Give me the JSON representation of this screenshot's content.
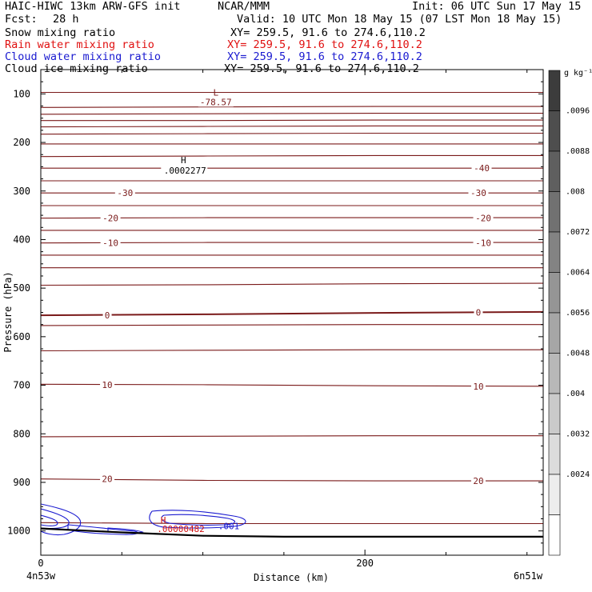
{
  "header": {
    "title_left": "HAIC-HIWC 13km ARW-GFS init",
    "title_center": "NCAR/MMM",
    "init": "Init: 06 UTC Sun 17 May 15",
    "fcst_label": "Fcst:",
    "fcst_value": "28 h",
    "valid": "Valid: 10 UTC Mon 18 May 15 (07 LST Mon 18 May 15)"
  },
  "fields": [
    {
      "name": "Snow mixing ratio",
      "xy": "XY= 259.5, 91.6 to 274.6,110.2",
      "color": "#000000"
    },
    {
      "name": "Rain water mixing ratio",
      "xy": "XY= 259.5, 91.6 to 274.6,110.2",
      "color": "#e01010"
    },
    {
      "name": "Cloud water mixing ratio",
      "xy": "XY= 259.5, 91.6 to 274.6,110.2",
      "color": "#1a1ad0"
    },
    {
      "name": "Cloud ice mixing ratio",
      "xy": "XY= 259.5, 91.6 to 274.6,110.2",
      "color": "#000000"
    }
  ],
  "chart_data": {
    "type": "contour",
    "x_axis": {
      "label": "Distance (km)",
      "range": [
        0,
        310
      ],
      "ticks": [
        0,
        200
      ],
      "minor_ticks": [
        50,
        100,
        150,
        250,
        300
      ],
      "left_location": "4n53w",
      "right_location": "6n51w"
    },
    "y_axis": {
      "label": "Pressure (hPa)",
      "range": [
        50,
        1050
      ],
      "ticks": [
        100,
        200,
        300,
        400,
        500,
        600,
        700,
        800,
        900,
        1000
      ]
    },
    "colorbar": {
      "units": "g kg⁻¹",
      "labels": [
        ".0096",
        ".0088",
        ".008",
        ".0072",
        ".0064",
        ".0056",
        ".0048",
        ".004",
        ".0032",
        ".0024"
      ]
    },
    "temperature_isotherms": {
      "color": "#7a1a1a",
      "lines": [
        {
          "p": [
            97,
            97,
            97,
            97
          ],
          "label": null
        },
        {
          "p": [
            128,
            127,
            126,
            126
          ],
          "label": null
        },
        {
          "p": [
            142,
            141,
            140,
            140
          ],
          "label": null
        },
        {
          "p": [
            155,
            155,
            154,
            154
          ],
          "label": null
        },
        {
          "p": [
            168,
            167,
            166,
            166
          ],
          "label": null
        },
        {
          "p": [
            183,
            182,
            181,
            181
          ],
          "label": null
        },
        {
          "p": [
            203,
            203,
            203,
            203
          ],
          "label": null
        },
        {
          "p": [
            229,
            228,
            227,
            227
          ],
          "label": null
        },
        {
          "p": [
            253,
            253,
            253,
            253
          ],
          "label": "-40"
        },
        {
          "p": [
            279,
            279,
            279,
            279
          ],
          "label": null
        },
        {
          "p": [
            304,
            304,
            304,
            304
          ],
          "label": "-30"
        },
        {
          "p": [
            330,
            330,
            330,
            330
          ],
          "label": null
        },
        {
          "p": [
            356,
            355,
            355,
            355
          ],
          "label": "-20"
        },
        {
          "p": [
            381,
            381,
            381,
            381
          ],
          "label": null
        },
        {
          "p": [
            407,
            406,
            406,
            406
          ],
          "label": "-10"
        },
        {
          "p": [
            432,
            432,
            432,
            432
          ],
          "label": null
        },
        {
          "p": [
            458,
            458,
            458,
            458
          ],
          "label": null
        },
        {
          "p": [
            494,
            493,
            491,
            490
          ],
          "label": null
        },
        {
          "p": [
            556,
            554,
            551,
            549
          ],
          "label": "0",
          "bold": true
        },
        {
          "p": [
            577,
            576,
            575,
            575
          ],
          "label": null
        },
        {
          "p": [
            629,
            628,
            627,
            627
          ],
          "label": null
        },
        {
          "p": [
            698,
            699,
            701,
            702
          ],
          "label": "10"
        },
        {
          "p": [
            806,
            805,
            804,
            804
          ],
          "label": null
        },
        {
          "p": [
            893,
            896,
            897,
            897
          ],
          "label": "20"
        },
        {
          "p": [
            983,
            985,
            985,
            985
          ],
          "label": null
        }
      ],
      "label_positions": [
        {
          "text": "-40",
          "x": 272,
          "p": 253
        },
        {
          "text": "-30",
          "x": 52,
          "p": 304
        },
        {
          "text": "-30",
          "x": 270,
          "p": 304
        },
        {
          "text": "-20",
          "x": 43,
          "p": 356
        },
        {
          "text": "-20",
          "x": 273,
          "p": 356
        },
        {
          "text": "-10",
          "x": 43,
          "p": 407
        },
        {
          "text": "-10",
          "x": 273,
          "p": 407
        },
        {
          "text": "0",
          "x": 41,
          "p": 556
        },
        {
          "text": "0",
          "x": 270,
          "p": 550
        },
        {
          "text": "10",
          "x": 41,
          "p": 699
        },
        {
          "text": "10",
          "x": 270,
          "p": 702
        },
        {
          "text": "20",
          "x": 41,
          "p": 893
        },
        {
          "text": "20",
          "x": 270,
          "p": 897
        }
      ]
    },
    "low_marker": {
      "letter": "L",
      "value": "-78.57",
      "x": 108,
      "p": 100
    },
    "high_marker": {
      "letter": "H",
      "value": ".0002277",
      "x": 88,
      "p": 249
    },
    "cloud_water": {
      "color": "#1a1ad0",
      "label": ".001",
      "label_x": 116,
      "label_p": 990
    },
    "rain_marker": {
      "letter": "H",
      "value": ".00000482",
      "x": 78,
      "p": 987,
      "color": "#d01010"
    },
    "terrain_surface": {
      "x": [
        0,
        50,
        100,
        150,
        200,
        250,
        310
      ],
      "p": [
        995,
        1003,
        1010,
        1012,
        1012,
        1012,
        1012
      ]
    }
  }
}
